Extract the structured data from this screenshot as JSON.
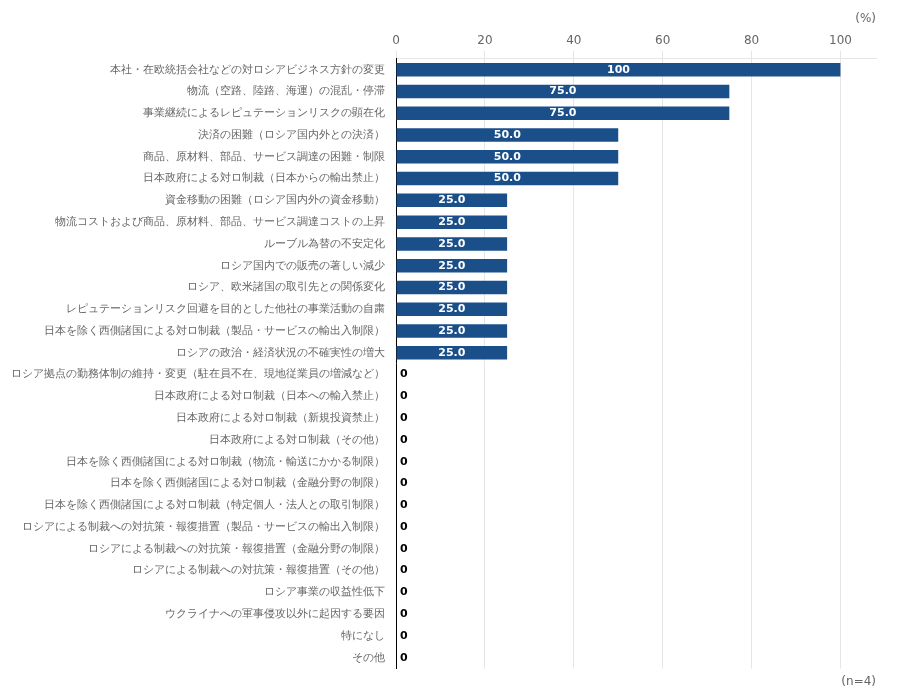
{
  "chart_data": {
    "type": "bar",
    "orientation": "horizontal",
    "categories": [
      "本社・在欧統括会社などの対ロシアビジネス方針の変更",
      "物流（空路、陸路、海運）の混乱・停滞",
      "事業継続によるレピュテーションリスクの顕在化",
      "決済の困難（ロシア国内外との決済）",
      "商品、原材料、部品、サービス調達の困難・制限",
      "日本政府による対ロ制裁（日本からの輸出禁止）",
      "資金移動の困難（ロシア国内外の資金移動）",
      "物流コストおよび商品、原材料、部品、サービス調達コストの上昇",
      "ルーブル為替の不安定化",
      "ロシア国内での販売の著しい減少",
      "ロシア、欧米諸国の取引先との関係変化",
      "レピュテーションリスク回避を目的とした他社の事業活動の自粛",
      "日本を除く西側諸国による対ロ制裁（製品・サービスの輸出入制限）",
      "ロシアの政治・経済状況の不確実性の増大",
      "ロシア拠点の勤務体制の維持・変更（駐在員不在、現地従業員の増減など）",
      "日本政府による対ロ制裁（日本への輸入禁止）",
      "日本政府による対ロ制裁（新規投資禁止）",
      "日本政府による対ロ制裁（その他）",
      "日本を除く西側諸国による対ロ制裁（物流・輸送にかかる制限）",
      "日本を除く西側諸国による対ロ制裁（金融分野の制限）",
      "日本を除く西側諸国による対ロ制裁（特定個人・法人との取引制限）",
      "ロシアによる制裁への対抗策・報復措置（製品・サービスの輸出入制限）",
      "ロシアによる制裁への対抗策・報復措置（金融分野の制限）",
      "ロシアによる制裁への対抗策・報復措置（その他）",
      "ロシア事業の収益性低下",
      "ウクライナへの軍事侵攻以外に起因する要因",
      "特になし",
      "その他"
    ],
    "values": [
      100,
      75.0,
      75.0,
      50.0,
      50.0,
      50.0,
      25.0,
      25.0,
      25.0,
      25.0,
      25.0,
      25.0,
      25.0,
      25.0,
      0,
      0,
      0,
      0,
      0,
      0,
      0,
      0,
      0,
      0,
      0,
      0,
      0,
      0
    ],
    "value_labels": [
      "100",
      "75.0",
      "75.0",
      "50.0",
      "50.0",
      "50.0",
      "25.0",
      "25.0",
      "25.0",
      "25.0",
      "25.0",
      "25.0",
      "25.0",
      "25.0",
      "0",
      "0",
      "0",
      "0",
      "0",
      "0",
      "0",
      "0",
      "0",
      "0",
      "0",
      "0",
      "0",
      "0"
    ],
    "color": "#1a4f8a",
    "xlim": [
      0,
      108
    ],
    "xticks": [
      0,
      20,
      40,
      60,
      80,
      100
    ],
    "xlabel": "(%)",
    "annotation": "(n=4)",
    "grid": true,
    "data_labels": true
  }
}
